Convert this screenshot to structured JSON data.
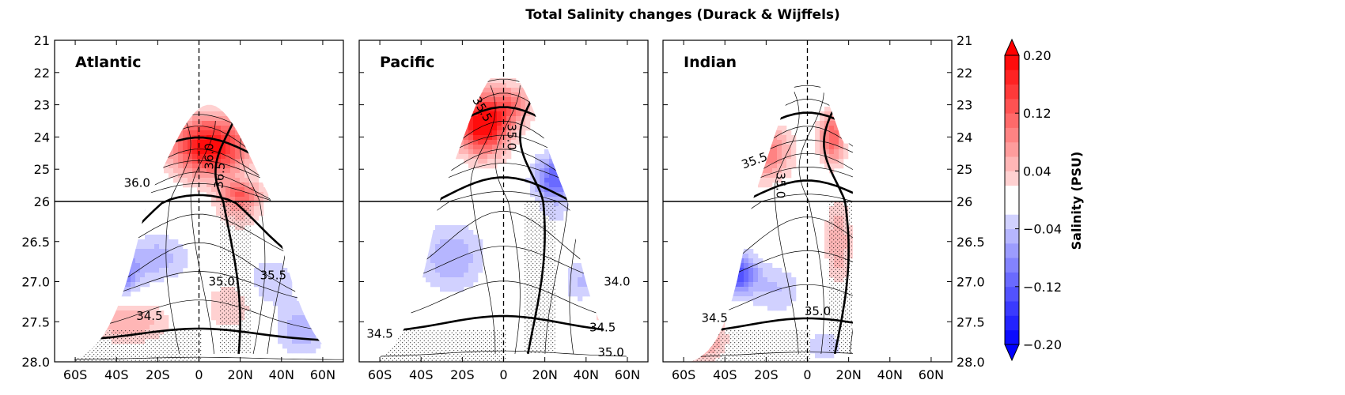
{
  "chart_data": {
    "type": "heatmap",
    "title": "Total Salinity changes (Durack & Wijffels)",
    "x_ticks": [
      {
        "label": "60S",
        "value": -60
      },
      {
        "label": "40S",
        "value": -40
      },
      {
        "label": "20S",
        "value": -20
      },
      {
        "label": "0",
        "value": 0
      },
      {
        "label": "20N",
        "value": 20
      },
      {
        "label": "40N",
        "value": 40
      },
      {
        "label": "60N",
        "value": 60
      }
    ],
    "xlim": [
      -70,
      70
    ],
    "y_upper_ticks": [
      "21",
      "22",
      "23",
      "24",
      "25",
      "26"
    ],
    "y_upper_range": [
      21,
      26
    ],
    "y_lower_ticks": [
      "26.5",
      "27.0",
      "27.5",
      "28.0"
    ],
    "y_lower_range": [
      26,
      28
    ],
    "panels": [
      {
        "name": "Atlantic",
        "top_density": 23.0,
        "contour_labels": [
          {
            "text": "36.0",
            "lat": -30,
            "dens": 25.55,
            "rot": 0
          },
          {
            "text": "36.0",
            "lat": 7,
            "dens": 24.6,
            "rot": -90
          },
          {
            "text": "36.5",
            "lat": 12,
            "dens": 25.2,
            "rot": -85
          },
          {
            "text": "35.0",
            "lat": 11,
            "dens": 27.05,
            "rot": 0
          },
          {
            "text": "35.5",
            "lat": 36,
            "dens": 26.97,
            "rot": 0
          },
          {
            "text": "34.5",
            "lat": -24,
            "dens": 27.48,
            "rot": 0
          }
        ],
        "blobs": [
          {
            "lat": 5,
            "dens": 24.3,
            "amp": 0.2,
            "sl": 18,
            "sd": 0.9
          },
          {
            "lat": 20,
            "dens": 25.8,
            "amp": 0.12,
            "sl": 10,
            "sd": 0.4
          },
          {
            "lat": -35,
            "dens": 26.1,
            "amp": -0.05,
            "sl": 8,
            "sd": 0.15
          },
          {
            "lat": -40,
            "dens": 26.9,
            "amp": -0.11,
            "sl": 10,
            "sd": 0.25
          },
          {
            "lat": -20,
            "dens": 26.7,
            "amp": -0.05,
            "sl": 15,
            "sd": 0.3
          },
          {
            "lat": 35,
            "dens": 27.0,
            "amp": -0.04,
            "sl": 12,
            "sd": 0.3
          },
          {
            "lat": 50,
            "dens": 27.6,
            "amp": -0.06,
            "sl": 12,
            "sd": 0.3
          },
          {
            "lat": -35,
            "dens": 27.5,
            "amp": 0.06,
            "sl": 20,
            "sd": 0.25
          },
          {
            "lat": 15,
            "dens": 27.3,
            "amp": 0.04,
            "sl": 12,
            "sd": 0.3
          }
        ]
      },
      {
        "name": "Pacific",
        "top_density": 21.9,
        "contour_labels": [
          {
            "text": "35.5",
            "lat": -12,
            "dens": 23.2,
            "rot": 60
          },
          {
            "text": "35.0",
            "lat": 2,
            "dens": 24.0,
            "rot": 90
          },
          {
            "text": "34.0",
            "lat": 55,
            "dens": 27.05,
            "rot": 0
          },
          {
            "text": "34.5",
            "lat": 48,
            "dens": 27.62,
            "rot": 0
          },
          {
            "text": "34.5",
            "lat": -60,
            "dens": 27.7,
            "rot": 0
          },
          {
            "text": "35.0",
            "lat": 52,
            "dens": 27.93,
            "rot": 0
          }
        ],
        "blobs": [
          {
            "lat": -10,
            "dens": 23.6,
            "amp": 0.22,
            "sl": 12,
            "sd": 0.9
          },
          {
            "lat": 5,
            "dens": 23.0,
            "amp": 0.08,
            "sl": 10,
            "sd": 0.6
          },
          {
            "lat": 25,
            "dens": 25.3,
            "amp": -0.12,
            "sl": 10,
            "sd": 0.7
          },
          {
            "lat": -50,
            "dens": 26.0,
            "amp": -0.08,
            "sl": 6,
            "sd": 0.4
          },
          {
            "lat": -25,
            "dens": 26.7,
            "amp": -0.06,
            "sl": 15,
            "sd": 0.4
          },
          {
            "lat": -55,
            "dens": 27.0,
            "amp": -0.05,
            "sl": 10,
            "sd": 0.3
          },
          {
            "lat": 45,
            "dens": 26.3,
            "amp": 0.05,
            "sl": 8,
            "sd": 0.4
          },
          {
            "lat": 50,
            "dens": 27.3,
            "amp": 0.04,
            "sl": 10,
            "sd": 0.3
          },
          {
            "lat": 40,
            "dens": 27.0,
            "amp": -0.05,
            "sl": 10,
            "sd": 0.3
          }
        ]
      },
      {
        "name": "Indian",
        "top_density": 22.1,
        "contour_labels": [
          {
            "text": "35.5",
            "lat": -25,
            "dens": 24.85,
            "rot": -20
          },
          {
            "text": "35.0",
            "lat": -15,
            "dens": 25.5,
            "rot": 90
          },
          {
            "text": "34.5",
            "lat": -45,
            "dens": 27.5,
            "rot": 0
          },
          {
            "text": "35.0",
            "lat": 5,
            "dens": 27.42,
            "rot": 0
          }
        ],
        "blobs": [
          {
            "lat": -20,
            "dens": 24.5,
            "amp": 0.1,
            "sl": 12,
            "sd": 0.8
          },
          {
            "lat": 12,
            "dens": 24.0,
            "amp": 0.12,
            "sl": 6,
            "sd": 0.8
          },
          {
            "lat": 15,
            "dens": 26.5,
            "amp": 0.06,
            "sl": 6,
            "sd": 0.5
          },
          {
            "lat": -35,
            "dens": 26.9,
            "amp": -0.14,
            "sl": 10,
            "sd": 0.25
          },
          {
            "lat": -15,
            "dens": 27.1,
            "amp": -0.04,
            "sl": 12,
            "sd": 0.3
          },
          {
            "lat": -50,
            "dens": 27.7,
            "amp": 0.07,
            "sl": 10,
            "sd": 0.3
          },
          {
            "lat": 8,
            "dens": 27.8,
            "amp": -0.04,
            "sl": 8,
            "sd": 0.2
          }
        ]
      }
    ],
    "colorbar": {
      "label": "Salinity (PSU)",
      "min": -0.2,
      "max": 0.2,
      "tick_labels": [
        {
          "text": "0.20",
          "value": 0.2
        },
        {
          "text": "0.12",
          "value": 0.12
        },
        {
          "text": "0.04",
          "value": 0.04
        },
        {
          "text": "−0.04",
          "value": -0.04
        },
        {
          "text": "−0.12",
          "value": -0.12
        },
        {
          "text": "−0.20",
          "value": -0.2
        }
      ]
    },
    "colors": {
      "positive": "#ff0000",
      "negative": "#0000ff",
      "neutral": "#ffffff",
      "contour": "#000000"
    }
  }
}
